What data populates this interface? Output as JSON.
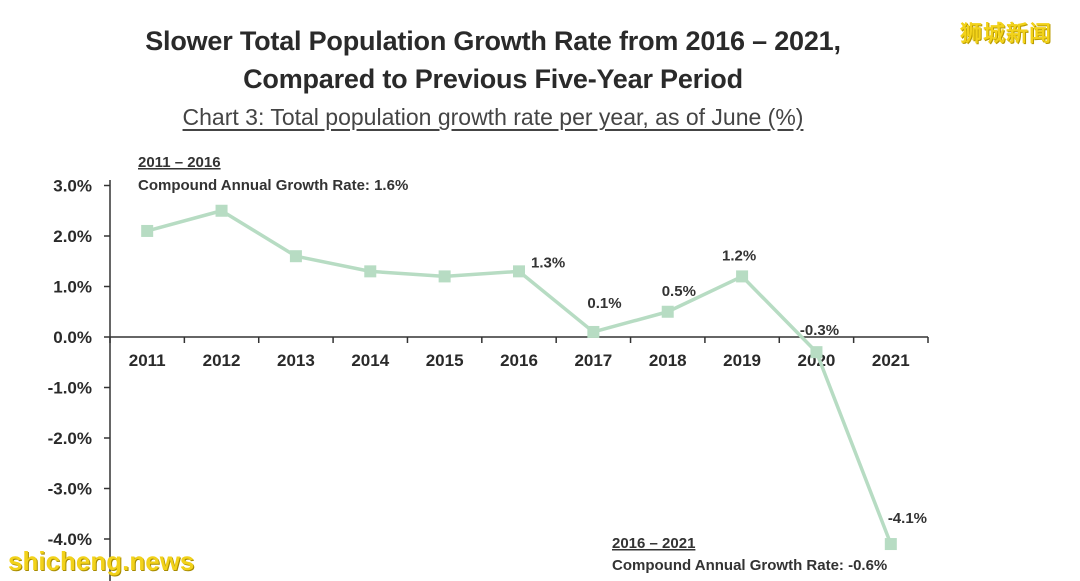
{
  "watermarks": {
    "top_right": "狮城新闻",
    "bottom_left": "shicheng.news"
  },
  "colors": {
    "line": "#b7dcc3",
    "marker": "#b7dcc3",
    "axis": "#333333",
    "watermark": "#f2d21a"
  },
  "chart_data": {
    "type": "line",
    "title": "Slower Total Population Growth Rate from 2016 – 2021,",
    "title_line2": "Compared to Previous Five-Year Period",
    "subtitle": "Chart 3: Total population growth rate per year, as of June (%)",
    "categories": [
      "2011",
      "2012",
      "2013",
      "2014",
      "2015",
      "2016",
      "2017",
      "2018",
      "2019",
      "2020",
      "2021"
    ],
    "series": [
      {
        "name": "Total population growth rate (%)",
        "values": [
          2.1,
          2.5,
          1.6,
          1.3,
          1.2,
          1.3,
          0.1,
          0.5,
          1.2,
          -0.3,
          -4.1
        ]
      }
    ],
    "y_ticks": [
      "3.0%",
      "2.0%",
      "1.0%",
      "0.0%",
      "-1.0%",
      "-2.0%",
      "-3.0%",
      "-4.0%"
    ],
    "y_tick_values": [
      3,
      2,
      1,
      0,
      -1,
      -2,
      -3,
      -4
    ],
    "ylim": [
      -4.5,
      3.0
    ],
    "data_labels": [
      {
        "index": 5,
        "text": "1.3%"
      },
      {
        "index": 6,
        "text": "0.1%"
      },
      {
        "index": 7,
        "text": "0.5%"
      },
      {
        "index": 8,
        "text": "1.2%"
      },
      {
        "index": 9,
        "text": "-0.3%"
      },
      {
        "index": 10,
        "text": "-4.1%"
      }
    ],
    "annotations": [
      {
        "period": "2011 – 2016",
        "text": "Compound Annual Growth Rate: 1.6%",
        "placement": "top-left"
      },
      {
        "period": "2016 – 2021",
        "text": "Compound Annual Growth Rate: -0.6%",
        "placement": "bottom-right"
      }
    ],
    "xlabel": "",
    "ylabel": ""
  }
}
